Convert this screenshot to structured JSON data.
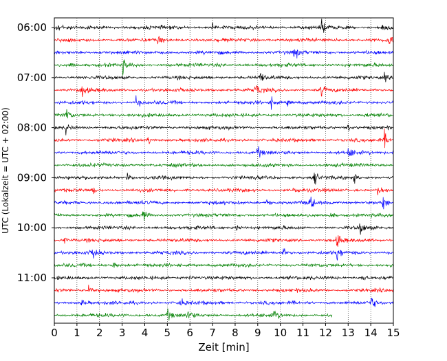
{
  "chart_data": {
    "type": "line",
    "title": "",
    "xlabel": "Zeit  [min]",
    "ylabel": "UTC (Lokalzeit = UTC + 02:00)",
    "xlim": [
      0,
      15
    ],
    "x_ticks": [
      "0",
      "1",
      "2",
      "3",
      "4",
      "5",
      "6",
      "7",
      "8",
      "9",
      "10",
      "11",
      "12",
      "13",
      "14",
      "15"
    ],
    "y_ticks": [
      "06:00",
      "07:00",
      "08:00",
      "09:00",
      "10:00",
      "11:00"
    ],
    "grid": "vertical dotted at each minute",
    "colors": [
      "#000000",
      "#ff0000",
      "#0000ff",
      "#008000"
    ],
    "rows": [
      {
        "start_utc": "06:00",
        "duration_min": 15,
        "color": "#000000",
        "events_min": [
          0.1,
          7,
          11.8,
          14.5
        ]
      },
      {
        "start_utc": "06:15",
        "duration_min": 15,
        "color": "#ff0000",
        "events_min": [
          4.6,
          14.8
        ]
      },
      {
        "start_utc": "06:30",
        "duration_min": 15,
        "color": "#0000ff",
        "events_min": [
          10.6
        ]
      },
      {
        "start_utc": "06:45",
        "duration_min": 15,
        "color": "#008000",
        "events_min": [
          0.7,
          3
        ]
      },
      {
        "start_utc": "07:00",
        "duration_min": 15,
        "color": "#000000",
        "events_min": [
          9.1,
          14.6
        ]
      },
      {
        "start_utc": "07:15",
        "duration_min": 15,
        "color": "#ff0000",
        "events_min": [
          1.2,
          8.9,
          11.8
        ]
      },
      {
        "start_utc": "07:30",
        "duration_min": 15,
        "color": "#0000ff",
        "events_min": [
          3.6,
          9.6,
          10.3
        ]
      },
      {
        "start_utc": "07:45",
        "duration_min": 15,
        "color": "#008000",
        "events_min": [
          0.5,
          13.7
        ]
      },
      {
        "start_utc": "08:00",
        "duration_min": 15,
        "color": "#000000",
        "events_min": [
          0.5,
          13
        ]
      },
      {
        "start_utc": "08:15",
        "duration_min": 15,
        "color": "#ff0000",
        "events_min": [
          4.1,
          14.6
        ]
      },
      {
        "start_utc": "08:30",
        "duration_min": 15,
        "color": "#0000ff",
        "events_min": [
          9,
          13,
          15
        ]
      },
      {
        "start_utc": "08:45",
        "duration_min": 15,
        "color": "#008000",
        "events_min": []
      },
      {
        "start_utc": "09:00",
        "duration_min": 15,
        "color": "#000000",
        "events_min": [
          3.2,
          11.5,
          13.2
        ]
      },
      {
        "start_utc": "09:15",
        "duration_min": 15,
        "color": "#ff0000",
        "events_min": [
          1.7,
          10.6,
          14.3
        ]
      },
      {
        "start_utc": "09:30",
        "duration_min": 15,
        "color": "#0000ff",
        "events_min": [
          9.4,
          11.3,
          14.5
        ]
      },
      {
        "start_utc": "09:45",
        "duration_min": 15,
        "color": "#008000",
        "events_min": [
          3.9,
          12.2
        ]
      },
      {
        "start_utc": "10:00",
        "duration_min": 15,
        "color": "#000000",
        "events_min": [
          8,
          13.5
        ]
      },
      {
        "start_utc": "10:15",
        "duration_min": 15,
        "color": "#ff0000",
        "events_min": [
          0.4,
          12.5
        ]
      },
      {
        "start_utc": "10:30",
        "duration_min": 15,
        "color": "#0000ff",
        "events_min": [
          1.7,
          10.1,
          12.5
        ]
      },
      {
        "start_utc": "10:45",
        "duration_min": 15,
        "color": "#008000",
        "events_min": [
          2.6
        ]
      },
      {
        "start_utc": "11:00",
        "duration_min": 15,
        "color": "#000000",
        "events_min": [
          6,
          13.6
        ]
      },
      {
        "start_utc": "11:15",
        "duration_min": 15,
        "color": "#ff0000",
        "events_min": [
          1.5
        ]
      },
      {
        "start_utc": "11:30",
        "duration_min": 15,
        "color": "#0000ff",
        "events_min": [
          1.2,
          5.5,
          14
        ]
      },
      {
        "start_utc": "11:45",
        "duration_min": 12.3,
        "color": "#008000",
        "events_min": [
          5,
          5.9,
          9.7
        ]
      }
    ]
  }
}
